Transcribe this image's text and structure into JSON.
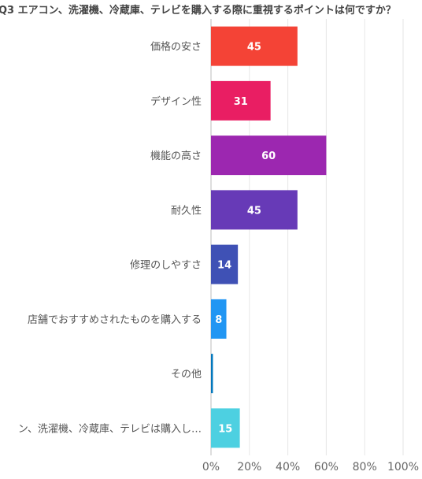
{
  "chart_data": {
    "type": "bar",
    "orientation": "horizontal",
    "title": "Q3 エアコン、洗濯機、冷蔵庫、テレビを購入する際に重視するポイントは何ですか？",
    "categories": [
      "価格の安さ",
      "デザイン性",
      "機能の高さ",
      "耐久性",
      "修理のしやすさ",
      "店舗でおすすめされたものを購入する",
      "その他",
      "エアコン、洗濯機、冷蔵庫、テレビは購入しない"
    ],
    "category_display": [
      "価格の安さ",
      "デザイン性",
      "機能の高さ",
      "耐久性",
      "修理のしやすさ",
      "店舗でおすすめされたものを購入する",
      "その他",
      "ン、洗濯機、冷蔵庫、テレビは購入し…"
    ],
    "values": [
      45,
      31,
      60,
      45,
      14,
      8,
      1,
      15
    ],
    "data_labels": [
      "45",
      "31",
      "60",
      "45",
      "14",
      "8",
      "",
      "15"
    ],
    "colors": [
      "#f44336",
      "#e91e63",
      "#9c27b0",
      "#673ab7",
      "#3f51b5",
      "#2196f3",
      "#0277bd",
      "#4dd0e1"
    ],
    "xlim": [
      0,
      100
    ],
    "x_ticks": [
      0,
      20,
      40,
      60,
      80,
      100
    ],
    "x_tick_labels": [
      "0%",
      "20%",
      "40%",
      "60%",
      "80%",
      "100%"
    ],
    "grid": true
  }
}
